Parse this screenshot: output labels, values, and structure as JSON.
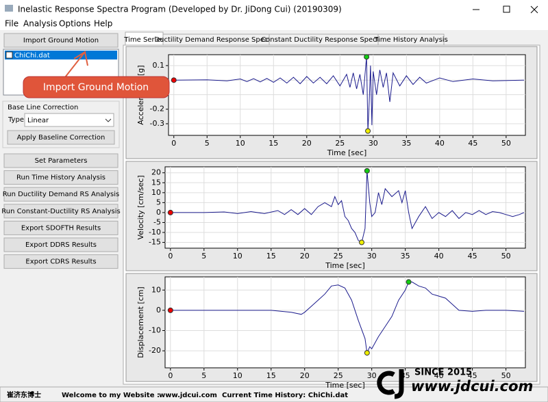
{
  "window": {
    "title": "Inelastic Response Spectra Program (Developed by Dr. JiDong Cui) (20190309)",
    "menu": [
      "File",
      "Analysis",
      "Options",
      "Help"
    ]
  },
  "sidebar": {
    "import_button": "Import Ground Motion",
    "files": [
      "ChiChi.dat"
    ],
    "baseline_label": "Base Line Correction",
    "type_label": "Type",
    "type_value": "Linear",
    "apply_button": "Apply Baseline Correction",
    "buttons": [
      "Set Parameters",
      "Run Time History Analysis",
      "Run Ductility Demand RS Analysis",
      "Run Constant-Ductility RS Analysis",
      "Export SDOFTH Results",
      "Export DDRS Results",
      "Export CDRS Results"
    ]
  },
  "callout": "Import Ground Motion",
  "tabs": [
    "Time Series",
    "Ductility Demand Response Spectra",
    "Constant Ductility Response Spectra",
    "Time History Analysis"
  ],
  "chart_data": [
    {
      "type": "line",
      "ylabel": "Acceleration [g]",
      "xlabel": "Time [sec]",
      "color": "#1a1a8c",
      "x": [
        0,
        5,
        8,
        10,
        11,
        12,
        13,
        14,
        15,
        16,
        17,
        18,
        19,
        20,
        21,
        22,
        23,
        24,
        25,
        26,
        26.5,
        27,
        27.5,
        28,
        28.5,
        29,
        29.2,
        29.4,
        29.6,
        29.8,
        30,
        30.5,
        31,
        31.5,
        32,
        32.5,
        33,
        34,
        35,
        36,
        37,
        38,
        40,
        42,
        45,
        48,
        52.7
      ],
      "values": [
        0,
        0.002,
        -0.005,
        0.008,
        -0.01,
        0.01,
        -0.012,
        0.012,
        -0.015,
        0.015,
        -0.02,
        0.02,
        -0.025,
        0.025,
        -0.02,
        0.02,
        -0.025,
        0.03,
        -0.04,
        0.04,
        -0.05,
        0.05,
        -0.06,
        0.04,
        -0.1,
        0.16,
        -0.35,
        -0.15,
        0.1,
        -0.31,
        0.06,
        -0.1,
        0.07,
        -0.05,
        0.05,
        -0.15,
        0.05,
        -0.04,
        0.03,
        -0.03,
        0.02,
        -0.02,
        0.015,
        -0.01,
        0.008,
        -0.005,
        0
      ],
      "xlim": [
        -0.8,
        52.9
      ],
      "ylim": [
        -0.38,
        0.175
      ],
      "xticks": [
        0,
        5,
        10,
        15,
        20,
        25,
        30,
        35,
        40,
        45,
        50
      ],
      "yticks": [
        0.1,
        0,
        -0.1,
        -0.2,
        -0.3
      ]
    },
    {
      "type": "line",
      "ylabel": "Velocity [cm/sec]",
      "xlabel": "Time [sec]",
      "color": "#1a1a8c",
      "x": [
        0,
        5,
        8,
        10,
        12,
        14,
        16,
        17,
        18,
        19,
        20,
        21,
        22,
        23,
        24,
        24.5,
        25,
        25.5,
        26,
        26.5,
        27,
        27.5,
        28,
        28.5,
        29,
        29.3,
        29.7,
        30,
        30.5,
        31,
        31.5,
        32,
        33,
        34,
        34.5,
        35,
        35.5,
        36,
        37,
        38,
        39,
        40,
        41,
        42,
        43,
        44,
        45,
        46,
        47,
        48,
        49,
        50,
        51,
        52,
        52.7
      ],
      "values": [
        0,
        0,
        0.3,
        -0.5,
        0.5,
        -0.5,
        1,
        -1,
        1.5,
        -1,
        2,
        -1,
        3,
        5,
        3,
        8,
        4,
        6,
        -2,
        -4,
        -8,
        -10,
        -14,
        -15,
        -8,
        21,
        5,
        -2,
        0,
        10,
        4,
        12,
        8,
        11,
        5,
        11,
        0,
        -8,
        -2,
        3,
        -3,
        0,
        -2,
        1,
        -3,
        0,
        -1,
        1,
        -1,
        0.5,
        0,
        -1,
        -2,
        -1,
        0
      ],
      "xlim": [
        -0.8,
        52.9
      ],
      "ylim": [
        -17.9,
        23
      ],
      "xticks": [
        0,
        5,
        10,
        15,
        20,
        25,
        30,
        35,
        40,
        45,
        50
      ],
      "yticks": [
        20,
        15,
        10,
        5,
        0,
        -5,
        -10,
        -15
      ]
    },
    {
      "type": "line",
      "ylabel": "Displacement [cm]",
      "xlabel": "Time [sec]",
      "color": "#1a1a8c",
      "x": [
        0,
        10,
        15,
        18,
        19.5,
        20,
        21,
        22,
        23,
        24,
        25,
        26,
        27,
        28,
        29,
        29.3,
        29.7,
        30,
        31,
        32,
        33,
        34,
        35,
        35.5,
        36,
        37,
        38,
        39,
        40,
        41,
        42,
        43,
        45,
        47,
        50,
        52.7
      ],
      "values": [
        0,
        0,
        0,
        -1,
        -2,
        -1,
        2,
        5,
        8,
        12,
        12.5,
        11,
        5,
        -5,
        -14,
        -21,
        -18,
        -19,
        -13,
        -8,
        -3,
        5,
        10,
        14,
        14,
        12,
        11,
        8,
        7,
        6,
        3,
        0,
        -0.5,
        0,
        0,
        -0.5
      ],
      "xlim": [
        -0.8,
        52.9
      ],
      "ylim": [
        -28.4,
        16.5
      ],
      "xticks": [
        0,
        5,
        10,
        15,
        20,
        25,
        30,
        35,
        40,
        45,
        50
      ],
      "yticks": [
        10,
        0,
        -10,
        -20
      ]
    }
  ],
  "watermark": {
    "since": "SINCE 2015",
    "site": "www.jdcui.com"
  },
  "status": [
    "崔济东博士",
    "Welcome to my Website :",
    "www.jdcui.com",
    "Current Time History: ChiChi.dat"
  ]
}
